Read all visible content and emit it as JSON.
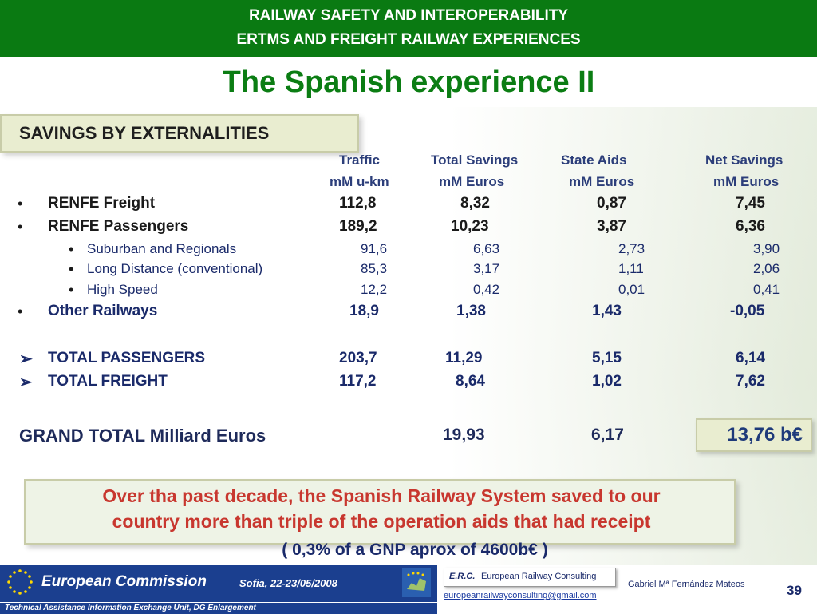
{
  "header": {
    "line1": "RAILWAY SAFETY AND INTEROPERABILITY",
    "line2": "ERTMS AND FREIGHT RAILWAY EXPERIENCES"
  },
  "title": "The Spanish experience II",
  "section_title": "SAVINGS BY  EXTERNALITIES",
  "columns": {
    "traffic": {
      "label": "Traffic",
      "unit": "mM u-km"
    },
    "total_savings": {
      "label": "Total Savings",
      "unit": "mM Euros"
    },
    "state_aids": {
      "label": "State Aids",
      "unit": "mM Euros"
    },
    "net_savings": {
      "label": "Net Savings",
      "unit": "mM Euros"
    }
  },
  "rows": {
    "renfe_freight": {
      "bullet": "•",
      "label": "RENFE Freight",
      "traffic": "112,8",
      "total": "8,32",
      "aids": "0,87",
      "net": "7,45"
    },
    "renfe_passengers": {
      "bullet": "•",
      "label": "RENFE Passengers",
      "traffic": "189,2",
      "total": "10,23",
      "aids": "3,87",
      "net": "6,36"
    },
    "suburban": {
      "bullet": "•",
      "label": "Suburban and Regionals",
      "traffic": "91,6",
      "total": "6,63",
      "aids": "2,73",
      "net": "3,90"
    },
    "long_distance": {
      "bullet": "•",
      "label": "Long Distance (conventional)",
      "traffic": "85,3",
      "total": "3,17",
      "aids": "1,11",
      "net": "2,06"
    },
    "high_speed": {
      "bullet": "•",
      "label": "High Speed",
      "traffic": "12,2",
      "total": "0,42",
      "aids": "0,01",
      "net": "0,41"
    },
    "other": {
      "bullet": "•",
      "label": "Other Railways",
      "traffic": "18,9",
      "total": "1,38",
      "aids": "1,43",
      "net": "-0,05"
    },
    "total_passengers": {
      "bullet": "➢",
      "label": "TOTAL PASSENGERS",
      "traffic": "203,7",
      "total": "11,29",
      "aids": "5,15",
      "net": "6,14"
    },
    "total_freight": {
      "bullet": "➢",
      "label": "TOTAL FREIGHT",
      "traffic": "117,2",
      "total": "8,64",
      "aids": "1,02",
      "net": "7,62"
    }
  },
  "grand_total": {
    "label": "GRAND TOTAL Milliard Euros",
    "total": "19,93",
    "aids": "6,17",
    "net": "13,76 b€"
  },
  "note": {
    "line1": "Over tha past decade, the Spanish Railway System saved to our",
    "line2": "country more than triple of the operation aids that had receipt"
  },
  "gnp": "( 0,3% of a GNP aprox of 4600b€ )",
  "footer": {
    "ec_name": "European Commission",
    "date": "Sofia, 22-23/05/2008",
    "strip": "Technical Assistance Information Exchange Unit, DG Enlargement",
    "erc_badge": "E.R.C.",
    "erc_name": "European Railway Consulting",
    "email": "europeanrailwayconsulting@gmail.com",
    "author": "Gabriel Mª Fernández Mateos",
    "page": "39"
  },
  "colors": {
    "header_green": "#0a7a12",
    "title_green": "#0b7d13",
    "navy": "#1a2a6a",
    "note_red": "#c8372f",
    "ec_blue": "#1b3f8f"
  }
}
